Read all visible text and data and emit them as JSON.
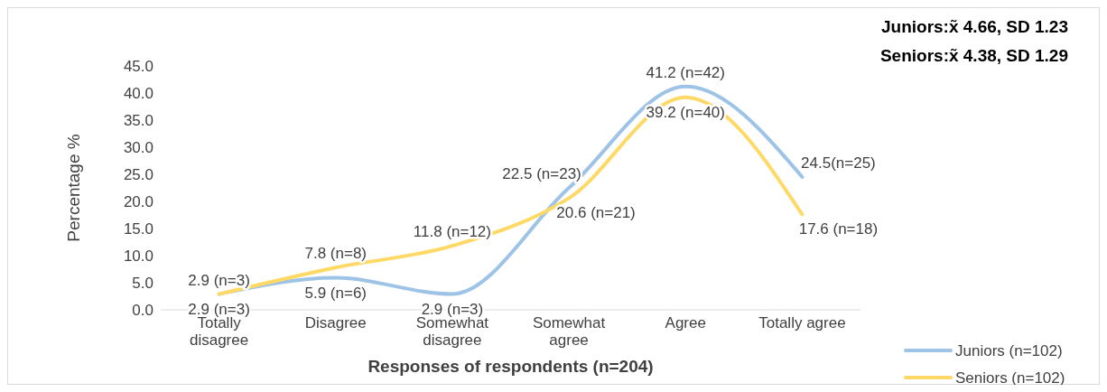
{
  "chart_data": {
    "type": "line",
    "xlabel": "Responses of respondents (n=204)",
    "ylabel": "Percentage %",
    "categories": [
      "Totally disagree",
      "Disagree",
      "Somewhat disagree",
      "Somewhat agree",
      "Agree",
      "Totally agree"
    ],
    "series": [
      {
        "name": "Juniors (n=102)",
        "color": "#9dc3e6",
        "values": [
          2.9,
          5.9,
          2.9,
          22.5,
          41.2,
          24.5
        ],
        "value_labels": [
          "2.9 (n=3)",
          "5.9 (n=6)",
          "2.9 (n=3)",
          "22.5 (n=23)",
          "41.2 (n=42)",
          "24.5(n=25)"
        ]
      },
      {
        "name": "Seniors (n=102)",
        "color": "#ffd966",
        "values": [
          2.9,
          7.8,
          11.8,
          20.6,
          39.2,
          17.6
        ],
        "value_labels": [
          "2.9 (n=3)",
          "7.8 (n=8)",
          "11.8 (n=12)",
          "20.6 (n=21)",
          "39.2 (n=40)",
          "17.6 (n=18)"
        ]
      }
    ],
    "ylim": [
      0,
      45
    ],
    "yticks": [
      {
        "value": 0,
        "label": "0.0"
      },
      {
        "value": 5,
        "label": "5.0"
      },
      {
        "value": 10,
        "label": "10.0"
      },
      {
        "value": 15,
        "label": "15.0"
      },
      {
        "value": 20,
        "label": "20.0"
      },
      {
        "value": 25,
        "label": "25.0"
      },
      {
        "value": 30,
        "label": "30.0"
      },
      {
        "value": 35,
        "label": "35.0"
      },
      {
        "value": 40,
        "label": "40.0"
      },
      {
        "value": 45,
        "label": "45.0"
      }
    ],
    "grid": false,
    "legend": "bottom right",
    "marker": "none",
    "line_style": "solid",
    "annotations": [
      "Juniors:x̃ 4.66, SD 1.23",
      "Seniors:x̃ 4.38, SD 1.29"
    ]
  }
}
